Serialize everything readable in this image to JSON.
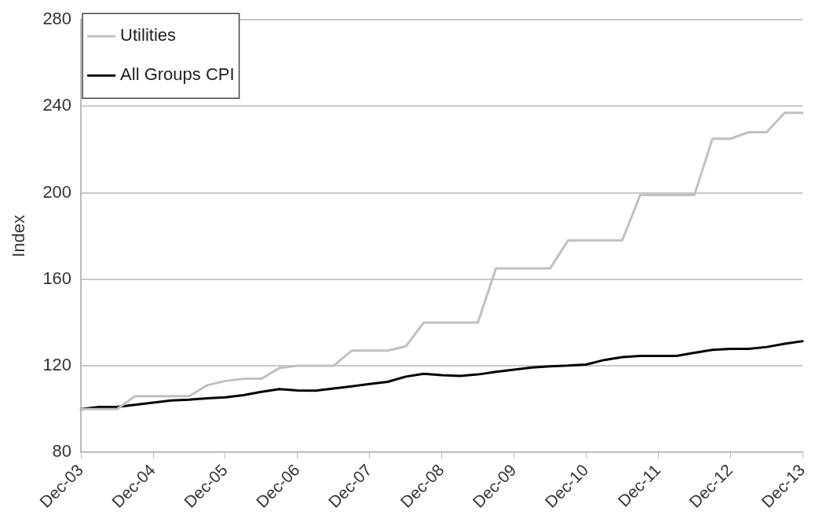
{
  "chart_data": {
    "type": "line",
    "ylabel": "Index",
    "categories": [
      "Dec-03",
      null,
      null,
      null,
      "Dec-04",
      null,
      null,
      null,
      "Dec-05",
      null,
      null,
      null,
      "Dec-06",
      null,
      null,
      null,
      "Dec-07",
      null,
      null,
      null,
      "Dec-08",
      null,
      null,
      null,
      "Dec-09",
      null,
      null,
      null,
      "Dec-10",
      null,
      null,
      null,
      "Dec-11",
      null,
      null,
      null,
      "Dec-12",
      null,
      null,
      null,
      "Dec-13"
    ],
    "series": [
      {
        "name": "Utilities",
        "color": "#c0c0c0",
        "values": [
          100,
          100,
          100,
          106,
          106,
          106,
          106,
          111,
          113,
          114,
          114,
          119,
          120,
          120,
          120,
          127,
          127,
          127,
          129,
          140,
          140,
          140,
          140,
          165,
          165,
          165,
          165,
          178,
          178,
          178,
          178,
          199,
          199,
          199,
          199,
          225,
          225,
          228,
          228,
          237,
          237
        ]
      },
      {
        "name": "All Groups CPI",
        "color": "#000000",
        "values": [
          100,
          101,
          101,
          102,
          103,
          104,
          104.3,
          105,
          105.4,
          106.4,
          108,
          109.2,
          108.6,
          108.5,
          109.5,
          110.5,
          111.6,
          112.6,
          115,
          116.3,
          115.7,
          115.3,
          116,
          117.2,
          118.2,
          119.2,
          119.8,
          120.1,
          120.6,
          122.7,
          124,
          124.6,
          124.6,
          124.6,
          126,
          127.4,
          127.8,
          127.8,
          128.7,
          130.2,
          131.4
        ]
      }
    ],
    "ylim": [
      80,
      280
    ],
    "yticks": [
      80,
      120,
      160,
      200,
      240,
      280
    ],
    "grid": "y",
    "legend": "top left",
    "marker": "none",
    "line_style": "solid"
  }
}
